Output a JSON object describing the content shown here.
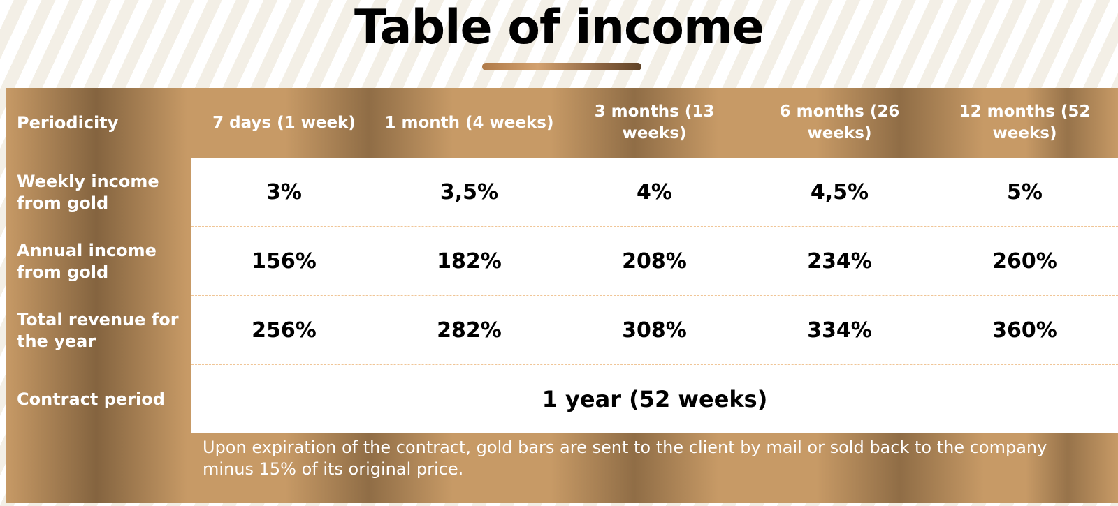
{
  "title": "Table of income",
  "colors": {
    "bronze": "#c79a66",
    "dark_bronze": "#8a6240",
    "white": "#ffffff",
    "divider": "#f0c596"
  },
  "table": {
    "periodicity_label": "Periodicity",
    "columns": [
      "7 days (1 week)",
      "1 month (4 weeks)",
      "3 months (13 weeks)",
      "6 months (26 weeks)",
      "12 months (52 weeks)"
    ],
    "rows": [
      {
        "label": "Weekly income from gold",
        "values": [
          "3%",
          "3,5%",
          "4%",
          "4,5%",
          "5%"
        ]
      },
      {
        "label": "Annual income from gold",
        "values": [
          "156%",
          "182%",
          "208%",
          "234%",
          "260%"
        ]
      },
      {
        "label": "Total revenue for the year",
        "values": [
          "256%",
          "282%",
          "308%",
          "334%",
          "360%"
        ]
      }
    ],
    "contract_label": "Contract period",
    "contract_value": "1 year (52 weeks)",
    "note": "Upon expiration of the contract, gold bars are sent to the client by mail or sold back to the company minus 15% of its original price."
  }
}
